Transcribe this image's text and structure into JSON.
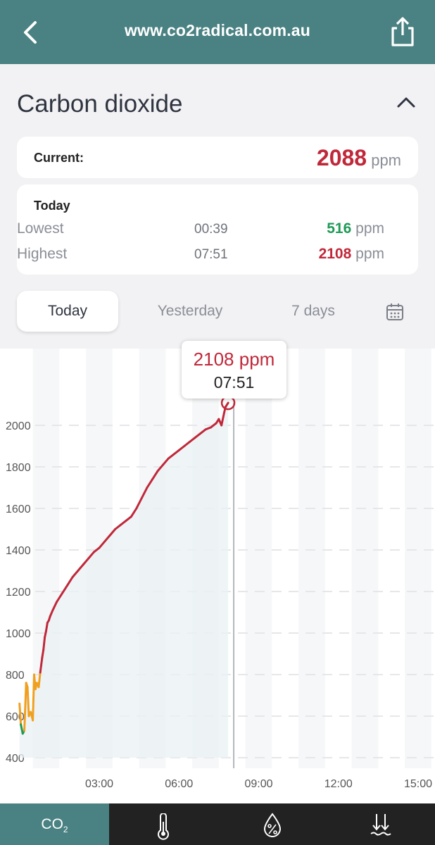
{
  "header": {
    "url": "www.co2radical.com.au",
    "back_icon": "back-arrow-icon",
    "share_icon": "share-icon"
  },
  "title": "Carbon dioxide",
  "current": {
    "label": "Current:",
    "value": "2088",
    "unit": "ppm"
  },
  "today": {
    "label": "Today",
    "lowest": {
      "label": "Lowest",
      "time": "00:39",
      "value": "516",
      "unit": "ppm"
    },
    "highest": {
      "label": "Highest",
      "time": "07:51",
      "value": "2108",
      "unit": "ppm"
    }
  },
  "tabs": [
    "Today",
    "Yesterday",
    "7 days"
  ],
  "tooltip": {
    "value": "2108 ppm",
    "time": "07:51"
  },
  "bottom_nav": {
    "co2_label": "CO",
    "co2_sub": "2",
    "icons": [
      "thermometer-icon",
      "humidity-drop-icon",
      "pressure-icon"
    ]
  },
  "colors": {
    "accent": "#4a8182",
    "high": "#c0283a",
    "low": "#1f9a56",
    "mid": "#f0a020"
  },
  "chart_data": {
    "type": "line",
    "ylim": [
      400,
      2100
    ],
    "yticks": [
      400,
      600,
      800,
      1000,
      1200,
      1400,
      1600,
      1800,
      2000
    ],
    "xlim": [
      0.0,
      15.0
    ],
    "xticks": [
      "03:00",
      "06:00",
      "09:00",
      "12:00",
      "15:00"
    ],
    "x": [
      0.0,
      0.05,
      0.12,
      0.18,
      0.25,
      0.3,
      0.35,
      0.42,
      0.5,
      0.55,
      0.6,
      0.65,
      0.72,
      0.78,
      0.85,
      0.9,
      0.95,
      1.0,
      1.05,
      1.1,
      1.15,
      1.25,
      1.4,
      1.6,
      1.8,
      2.0,
      2.2,
      2.4,
      2.6,
      2.8,
      3.0,
      3.2,
      3.4,
      3.6,
      3.8,
      4.0,
      4.2,
      4.4,
      4.6,
      4.8,
      5.0,
      5.2,
      5.4,
      5.6,
      5.8,
      6.0,
      6.2,
      6.4,
      6.6,
      6.8,
      7.0,
      7.2,
      7.4,
      7.5,
      7.6,
      7.7,
      7.75,
      7.85
    ],
    "series": [
      {
        "values": [
          660,
          560,
          516,
          530,
          760,
          740,
          600,
          620,
          580,
          800,
          730,
          760,
          740,
          810,
          880,
          920,
          980,
          1010,
          1050,
          1060,
          1080,
          1110,
          1150,
          1190,
          1230,
          1270,
          1300,
          1330,
          1360,
          1390,
          1410,
          1440,
          1470,
          1500,
          1520,
          1540,
          1560,
          1600,
          1650,
          1700,
          1740,
          1780,
          1810,
          1840,
          1860,
          1880,
          1900,
          1920,
          1940,
          1960,
          1980,
          1990,
          2010,
          2030,
          2000,
          2060,
          2088,
          2108
        ]
      }
    ]
  }
}
